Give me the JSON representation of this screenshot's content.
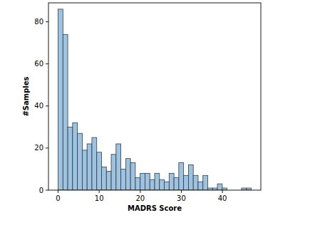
{
  "chart_data": {
    "type": "histogram",
    "x_label": "MADRS Score",
    "y_label": "#Samples",
    "bins": [
      0,
      1.175,
      2.35,
      3.525,
      4.7,
      5.875,
      7.05,
      8.225,
      9.4,
      10.575,
      11.75,
      12.925,
      14.1,
      15.275,
      16.45,
      17.625,
      18.8,
      19.975,
      21.15,
      22.325,
      23.5,
      24.675,
      25.85,
      27.025,
      28.2,
      29.375,
      30.55,
      31.725,
      32.9,
      34.075,
      35.25,
      36.425,
      37.6,
      38.775,
      39.95,
      41.125,
      42.3,
      43.475,
      44.65,
      45.825,
      47
    ],
    "values": [
      86,
      74,
      30,
      32,
      27,
      19,
      22,
      25,
      18,
      11,
      9,
      17,
      22,
      10,
      15,
      13,
      6,
      8,
      8,
      5,
      8,
      5,
      4,
      8,
      6,
      13,
      7,
      12,
      7,
      4,
      7,
      1,
      1,
      3,
      1,
      0,
      0,
      0,
      1,
      1
    ],
    "color": "#9dc3e2",
    "xlim": [
      -2.35,
      49.35
    ],
    "ylim": [
      0,
      89
    ],
    "xticks": [
      0,
      10,
      20,
      30,
      40
    ],
    "yticks": [
      0,
      20,
      40,
      60,
      80
    ],
    "grid": false
  }
}
